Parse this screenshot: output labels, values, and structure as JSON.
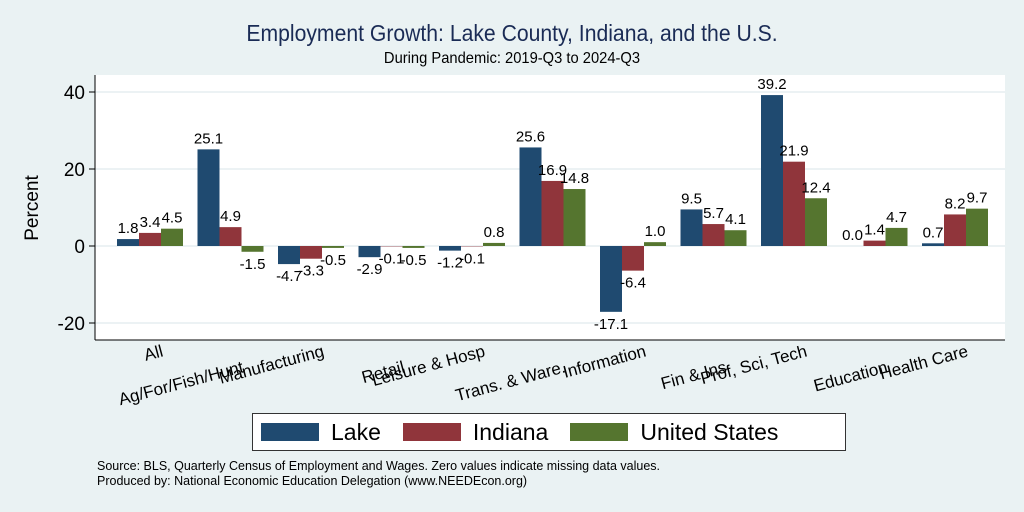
{
  "chart_data": {
    "type": "bar",
    "title": "Employment Growth: Lake County, Indiana, and the U.S.",
    "subtitle": "During Pandemic: 2019-Q3 to 2024-Q3",
    "xlabel": "",
    "ylabel": "Percent",
    "ylim": [
      -24,
      44
    ],
    "yticks": [
      -20,
      0,
      20,
      40
    ],
    "grid": true,
    "legend_position": "bottom",
    "categories": [
      "All",
      "Ag/For/Fish/Hunt",
      "Manufacturing",
      "Retail",
      "Leisure & Hosp",
      "Trans. & Ware.",
      "Information",
      "Fin & Ins",
      "Prof, Sci, Tech",
      "Education",
      "Health Care"
    ],
    "series": [
      {
        "name": "Lake",
        "color": "#1f4a70",
        "values": [
          1.8,
          25.1,
          -4.7,
          -2.9,
          -1.2,
          25.6,
          -17.1,
          9.5,
          39.2,
          0.0,
          0.7
        ]
      },
      {
        "name": "Indiana",
        "color": "#90353b",
        "values": [
          3.4,
          4.9,
          -3.3,
          -0.1,
          -0.1,
          16.9,
          -6.4,
          5.7,
          21.9,
          1.4,
          8.2
        ]
      },
      {
        "name": "United States",
        "color": "#55752f",
        "values": [
          4.5,
          -1.5,
          -0.5,
          -0.5,
          0.8,
          14.8,
          1.0,
          4.1,
          12.4,
          4.7,
          9.7
        ]
      }
    ]
  },
  "notes": {
    "source": "Source: BLS, Quarterly Census of Employment and Wages. Zero values indicate missing data values.",
    "producer": "Produced by: National Economic Education Delegation (www.NEEDEcon.org)"
  }
}
